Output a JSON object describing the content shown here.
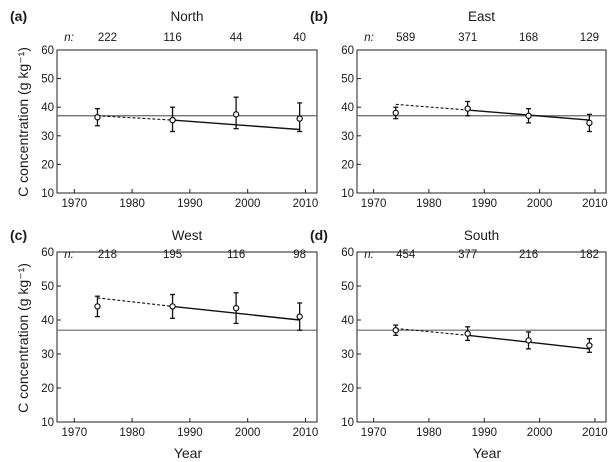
{
  "figure": {
    "ylabel": "C concentration (g kg⁻¹)",
    "xlabel": "Year"
  },
  "chart_data": [
    {
      "type": "scatter",
      "letter": "(a)",
      "title": "North",
      "n_prefix": "n:",
      "x": [
        1974,
        1987,
        1998,
        2009
      ],
      "y": [
        36.5,
        35.5,
        37.5,
        36.0
      ],
      "err_low": [
        33.5,
        31.5,
        32.5,
        31.5
      ],
      "err_high": [
        39.5,
        40.0,
        43.5,
        41.5
      ],
      "n": [
        "222",
        "116",
        "44",
        "40"
      ],
      "reference_line": 37,
      "trend_dashed": {
        "x": [
          1974,
          1987
        ],
        "y": [
          37.0,
          35.5
        ]
      },
      "trend_solid": {
        "x": [
          1987,
          2009
        ],
        "y": [
          35.5,
          32.2
        ]
      },
      "xlim": [
        1967,
        2012
      ],
      "ylim": [
        10,
        60
      ],
      "xticks": [
        1970,
        1980,
        1990,
        2000,
        2010
      ],
      "yticks": [
        10,
        20,
        30,
        40,
        50,
        60
      ]
    },
    {
      "type": "scatter",
      "letter": "(b)",
      "title": "East",
      "n_prefix": "n:",
      "x": [
        1974,
        1987,
        1998,
        2009
      ],
      "y": [
        38.0,
        39.5,
        37.0,
        34.5
      ],
      "err_low": [
        36.0,
        37.0,
        34.5,
        31.5
      ],
      "err_high": [
        40.0,
        42.0,
        39.5,
        37.5
      ],
      "n": [
        "589",
        "371",
        "168",
        "129"
      ],
      "reference_line": 37,
      "trend_dashed": {
        "x": [
          1974,
          1987
        ],
        "y": [
          41.0,
          39.0
        ]
      },
      "trend_solid": {
        "x": [
          1987,
          2009
        ],
        "y": [
          39.0,
          35.5
        ]
      },
      "xlim": [
        1967,
        2012
      ],
      "ylim": [
        10,
        60
      ],
      "xticks": [
        1970,
        1980,
        1990,
        2000,
        2010
      ],
      "yticks": [
        10,
        20,
        30,
        40,
        50,
        60
      ]
    },
    {
      "type": "scatter",
      "letter": "(c)",
      "title": "West",
      "n_prefix": "n:",
      "x": [
        1974,
        1987,
        1998,
        2009
      ],
      "y": [
        44.0,
        44.0,
        43.5,
        41.0
      ],
      "err_low": [
        41.0,
        40.5,
        39.0,
        37.0
      ],
      "err_high": [
        47.0,
        47.5,
        48.0,
        45.0
      ],
      "n": [
        "218",
        "195",
        "116",
        "98"
      ],
      "reference_line": 37,
      "trend_dashed": {
        "x": [
          1974,
          1987
        ],
        "y": [
          46.5,
          44.0
        ]
      },
      "trend_solid": {
        "x": [
          1987,
          2009
        ],
        "y": [
          44.0,
          40.0
        ]
      },
      "xlim": [
        1967,
        2012
      ],
      "ylim": [
        10,
        60
      ],
      "xticks": [
        1970,
        1980,
        1990,
        2000,
        2010
      ],
      "yticks": [
        10,
        20,
        30,
        40,
        50,
        60
      ]
    },
    {
      "type": "scatter",
      "letter": "(d)",
      "title": "South",
      "n_prefix": "n:",
      "x": [
        1974,
        1987,
        1998,
        2009
      ],
      "y": [
        37.0,
        36.0,
        34.0,
        32.5
      ],
      "err_low": [
        35.5,
        34.0,
        31.5,
        30.5
      ],
      "err_high": [
        38.5,
        38.0,
        36.5,
        34.5
      ],
      "n": [
        "454",
        "377",
        "216",
        "182"
      ],
      "reference_line": 37,
      "trend_dashed": {
        "x": [
          1974,
          1987
        ],
        "y": [
          37.5,
          35.5
        ]
      },
      "trend_solid": {
        "x": [
          1987,
          2009
        ],
        "y": [
          35.5,
          31.5
        ]
      },
      "xlim": [
        1967,
        2012
      ],
      "ylim": [
        10,
        60
      ],
      "xticks": [
        1970,
        1980,
        1990,
        2000,
        2010
      ],
      "yticks": [
        10,
        20,
        30,
        40,
        50,
        60
      ]
    }
  ]
}
